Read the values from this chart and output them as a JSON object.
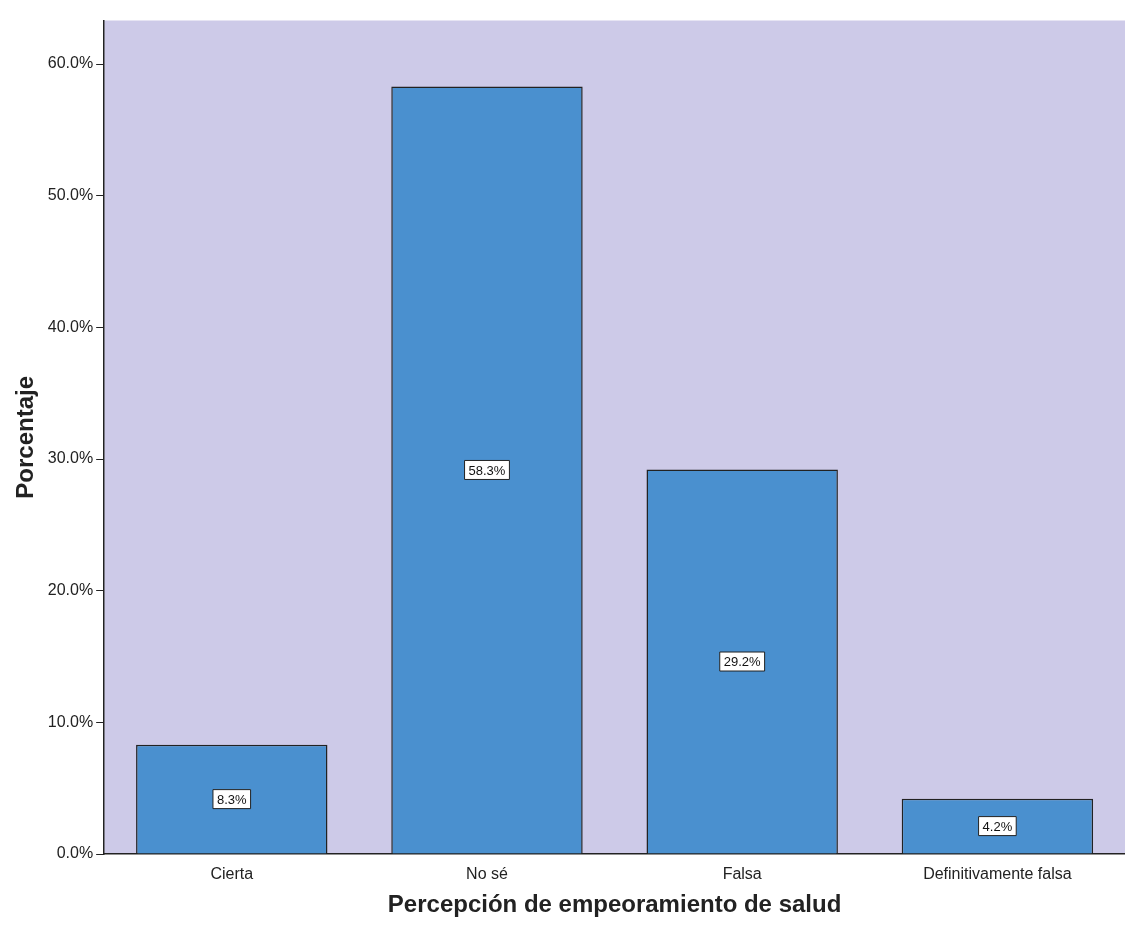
{
  "chart_data": {
    "type": "bar",
    "xlabel": "Percepción de empeoramiento de salud",
    "ylabel": "Porcentaje",
    "categories": [
      "Cierta",
      "No sé",
      "Falsa",
      "Definitivamente falsa"
    ],
    "values": [
      8.3,
      58.3,
      29.2,
      4.2
    ],
    "color": "#4a90cf",
    "ylim": [
      0,
      63.3
    ],
    "yticks": [
      {
        "value": 0,
        "label": "0.0%"
      },
      {
        "value": 10,
        "label": "10.0%"
      },
      {
        "value": 20,
        "label": "20.0%"
      },
      {
        "value": 30,
        "label": "30.0%"
      },
      {
        "value": 40,
        "label": "40.0%"
      },
      {
        "value": 50,
        "label": "50.0%"
      },
      {
        "value": 60,
        "label": "60.0%"
      }
    ],
    "value_labels": [
      "8.3%",
      "58.3%",
      "29.2%",
      "4.2%"
    ],
    "grid": false,
    "legend": false
  }
}
